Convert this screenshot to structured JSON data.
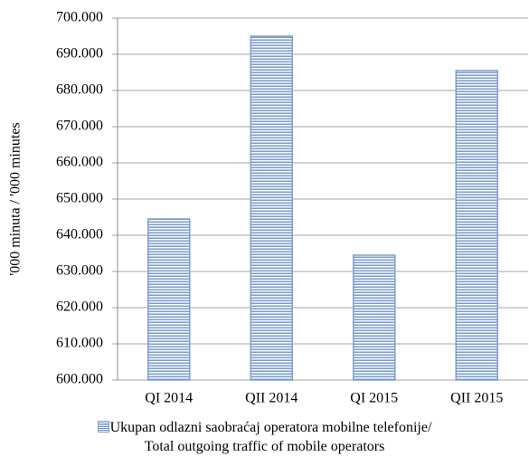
{
  "chart_data": {
    "type": "bar",
    "y_label": "'000 minuta / '000 minutes",
    "categories": [
      "QI 2014",
      "QII 2014",
      "QI 2015",
      "QII 2015"
    ],
    "series": [
      {
        "name": "Ukupan odlazni saobraćaj operatora mobilne telefonije/\nTotal outgoing traffic of mobile operators",
        "color": "#7f9fcc",
        "values": [
          644500,
          695000,
          634500,
          685500
        ]
      }
    ],
    "ylim": [
      600000,
      700000
    ],
    "yticks": [
      {
        "value": 600000,
        "label": "600.000"
      },
      {
        "value": 610000,
        "label": "610.000"
      },
      {
        "value": 620000,
        "label": "620.000"
      },
      {
        "value": 630000,
        "label": "630.000"
      },
      {
        "value": 640000,
        "label": "640.000"
      },
      {
        "value": 650000,
        "label": "650.000"
      },
      {
        "value": 660000,
        "label": "660.000"
      },
      {
        "value": 670000,
        "label": "670.000"
      },
      {
        "value": 680000,
        "label": "680.000"
      },
      {
        "value": 690000,
        "label": "690.000"
      },
      {
        "value": 700000,
        "label": "700.000"
      }
    ],
    "grid": true,
    "legend": "bottom"
  }
}
